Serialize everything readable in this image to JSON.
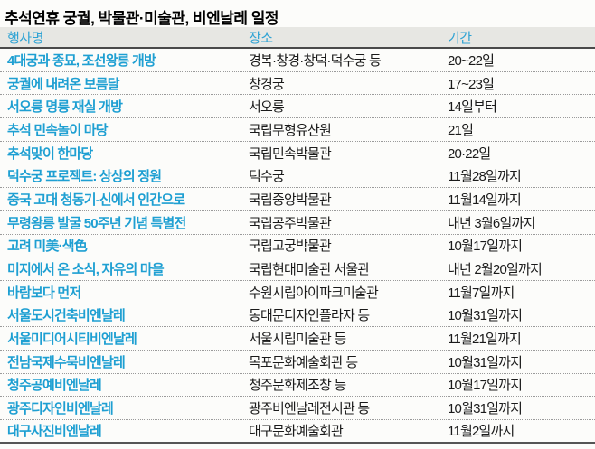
{
  "title": "추석연휴 궁궐, 박물관·미술관, 비엔날레 일정",
  "colors": {
    "accent_blue": "#1e9fd2",
    "header_blue": "#2fa3d4",
    "header_bg": "#e7e7e3",
    "rule_dark": "#4a4a4a",
    "dotted_gray": "#9a9a9a",
    "text_dark": "#1a1a1a",
    "row_bg": "#fcfcfa"
  },
  "chart_data": {
    "type": "table",
    "title": "추석연휴 궁궐, 박물관·미술관, 비엔날레 일정",
    "columns": [
      "행사명",
      "장소",
      "기간"
    ],
    "rows": [
      [
        "4대궁과 종묘, 조선왕릉 개방",
        "경복·창경·창덕·덕수궁 등",
        "20~22일"
      ],
      [
        "궁궐에 내려온 보름달",
        "창경궁",
        "17~23일"
      ],
      [
        "서오릉 명릉 재실 개방",
        "서오릉",
        "14일부터"
      ],
      [
        "추석 민속놀이 마당",
        "국립무형유산원",
        "21일"
      ],
      [
        "추석맞이 한마당",
        "국립민속박물관",
        "20·22일"
      ],
      [
        "덕수궁 프로젝트: 상상의 정원",
        "덕수궁",
        "11월28일까지"
      ],
      [
        "중국 고대 청동기-신에서 인간으로",
        "국립중앙박물관",
        "11월14일까지"
      ],
      [
        "무령왕릉 발굴 50주년 기념 특별전",
        "국립공주박물관",
        "내년 3월6일까지"
      ],
      [
        "고려 미美·색色",
        "국립고궁박물관",
        "10월17일까지"
      ],
      [
        "미지에서 온 소식, 자유의 마을",
        "국립현대미술관 서울관",
        "내년 2월20일까지"
      ],
      [
        "바람보다 먼저",
        "수원시립아이파크미술관",
        "11월7일까지"
      ],
      [
        "서울도시건축비엔날레",
        "동대문디자인플라자 등",
        "10월31일까지"
      ],
      [
        "서울미디어시티비엔날레",
        "서울시립미술관 등",
        "11월21일까지"
      ],
      [
        "전남국제수묵비엔날레",
        "목포문화예술회관 등",
        "10월31일까지"
      ],
      [
        "청주공예비엔날레",
        "청주문화제조창 등",
        "10월17일까지"
      ],
      [
        "광주디자인비엔날레",
        "광주비엔날레전시관 등",
        "10월31일까지"
      ],
      [
        "대구사진비엔날레",
        "대구문화예술회관",
        "11월2일까지"
      ]
    ]
  }
}
